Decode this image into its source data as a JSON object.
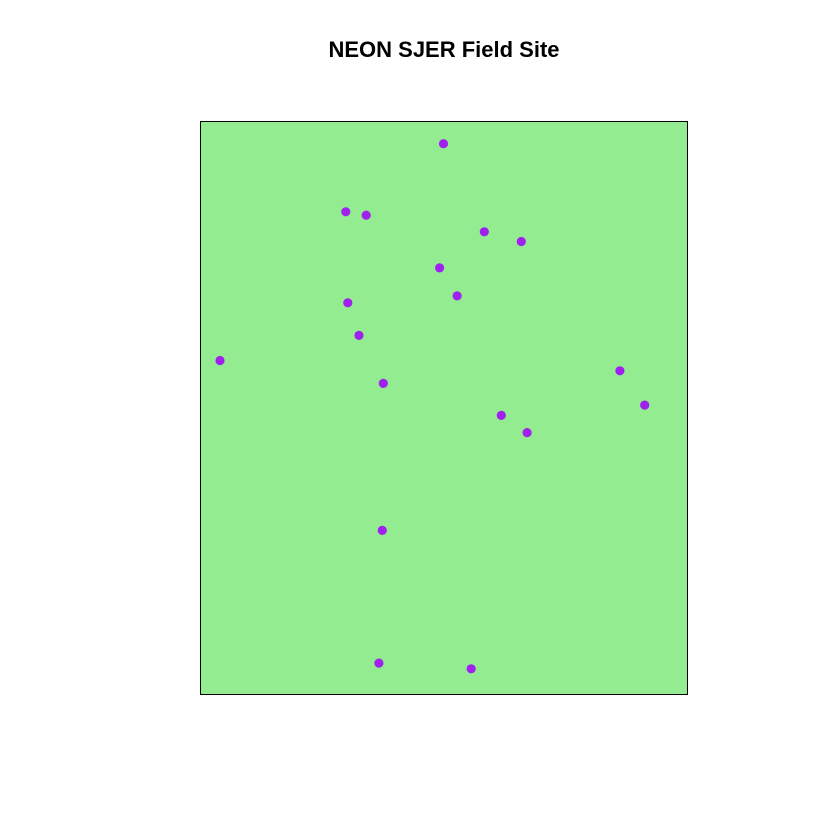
{
  "title": "NEON SJER Field Site",
  "colors": {
    "site_fill": "#93ED90",
    "site_border": "#000000",
    "plot_point": "#A020F0",
    "background": "#FFFFFF"
  },
  "chart_data": {
    "type": "scatter",
    "title": "NEON SJER Field Site",
    "xlabel": "",
    "ylabel": "",
    "axes_shown": false,
    "grid": false,
    "legend": "none",
    "xlim": [
      0,
      1
    ],
    "ylim": [
      0,
      1
    ],
    "series": [
      {
        "points": [
          {
            "x": 0.499,
            "y": 0.962
          },
          {
            "x": 0.298,
            "y": 0.843
          },
          {
            "x": 0.34,
            "y": 0.837
          },
          {
            "x": 0.583,
            "y": 0.808
          },
          {
            "x": 0.659,
            "y": 0.791
          },
          {
            "x": 0.491,
            "y": 0.745
          },
          {
            "x": 0.527,
            "y": 0.696
          },
          {
            "x": 0.302,
            "y": 0.684
          },
          {
            "x": 0.325,
            "y": 0.627
          },
          {
            "x": 0.039,
            "y": 0.583
          },
          {
            "x": 0.862,
            "y": 0.565
          },
          {
            "x": 0.375,
            "y": 0.543
          },
          {
            "x": 0.913,
            "y": 0.505
          },
          {
            "x": 0.618,
            "y": 0.487
          },
          {
            "x": 0.671,
            "y": 0.457
          },
          {
            "x": 0.373,
            "y": 0.286
          },
          {
            "x": 0.366,
            "y": 0.054
          },
          {
            "x": 0.556,
            "y": 0.044
          }
        ]
      }
    ]
  }
}
